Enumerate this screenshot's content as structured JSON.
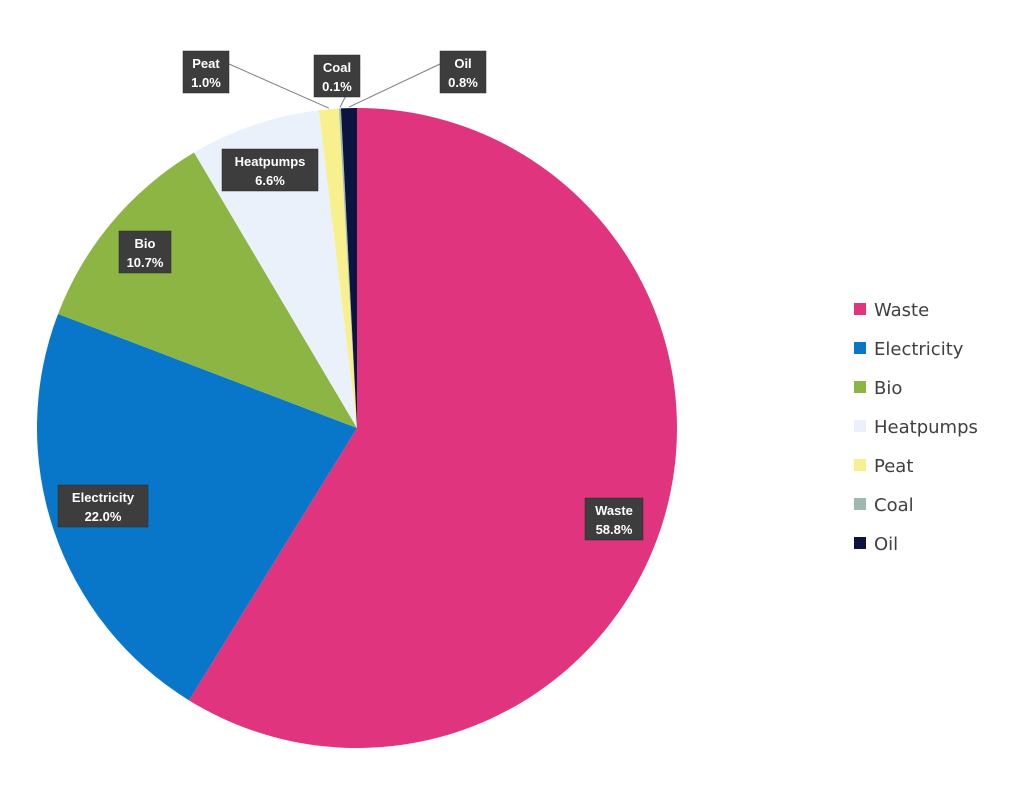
{
  "chart_data": {
    "type": "pie",
    "title": "",
    "start_angle_deg": 0,
    "direction": "clockwise",
    "slices": [
      {
        "name": "Waste",
        "value": 58.8,
        "label": "58.8%",
        "color": "#e0357e"
      },
      {
        "name": "Electricity",
        "value": 22.0,
        "label": "22.0%",
        "color": "#0877c9"
      },
      {
        "name": "Bio",
        "value": 10.7,
        "label": "10.7%",
        "color": "#8cb544"
      },
      {
        "name": "Heatpumps",
        "value": 6.6,
        "label": "6.6%",
        "color": "#eaf1fb"
      },
      {
        "name": "Peat",
        "value": 1.0,
        "label": "1.0%",
        "color": "#f7f08c"
      },
      {
        "name": "Coal",
        "value": 0.1,
        "label": "0.1%",
        "color": "#9fb8b0"
      },
      {
        "name": "Oil",
        "value": 0.8,
        "label": "0.8%",
        "color": "#0b1440"
      }
    ],
    "legend": {
      "placement": "right",
      "entries": [
        "Waste",
        "Electricity",
        "Bio",
        "Heatpumps",
        "Peat",
        "Coal",
        "Oil"
      ]
    }
  }
}
